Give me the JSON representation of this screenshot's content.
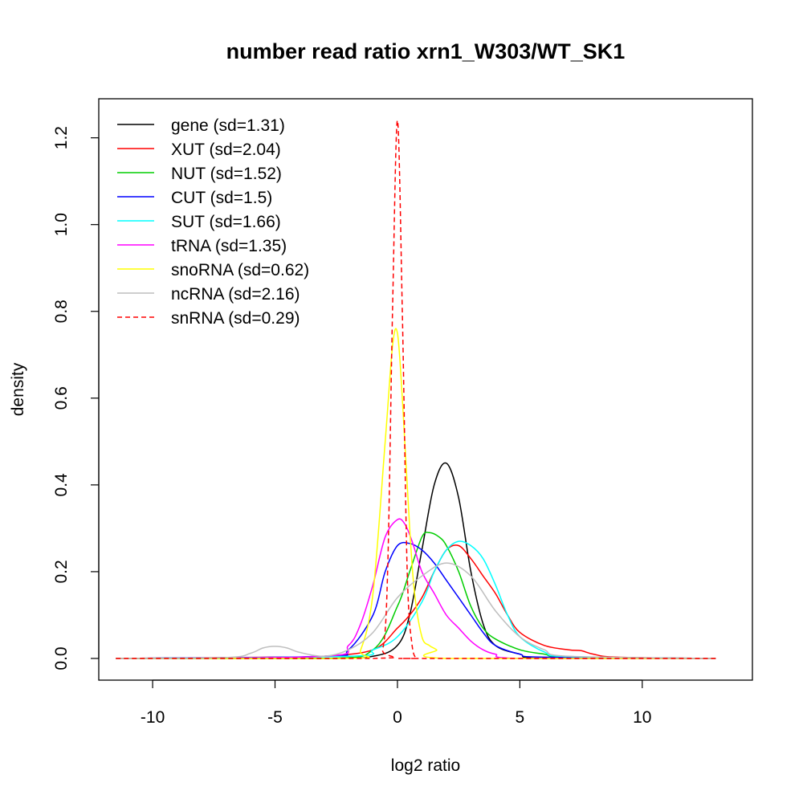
{
  "chart_data": {
    "type": "line",
    "title": "number read ratio xrn1_W303/WT_SK1",
    "xlabel": "log2 ratio",
    "ylabel": "density",
    "xlim": [
      -12.2,
      14.5
    ],
    "ylim": [
      -0.05,
      1.29
    ],
    "xticks": [
      -10,
      -5,
      0,
      5,
      10
    ],
    "xtick_labels": [
      "-10",
      "-5",
      "0",
      "5",
      "10"
    ],
    "yticks": [
      0.0,
      0.2,
      0.4,
      0.6,
      0.8,
      1.0,
      1.2
    ],
    "ytick_labels": [
      "0.0",
      "0.2",
      "0.4",
      "0.6",
      "0.8",
      "1.0",
      "1.2"
    ],
    "grid": false,
    "legend_position": "top-left",
    "series": [
      {
        "name": "gene (sd=1.31)",
        "color": "#000000",
        "dashed": false,
        "x": [
          -11.5,
          -3,
          -1,
          0,
          0.5,
          1,
          1.5,
          2,
          2.5,
          3,
          3.5,
          4,
          5,
          6,
          13
        ],
        "y": [
          0,
          0,
          0.005,
          0.03,
          0.1,
          0.25,
          0.4,
          0.45,
          0.37,
          0.2,
          0.08,
          0.03,
          0.01,
          0,
          0
        ]
      },
      {
        "name": "XUT (sd=2.04)",
        "color": "#ff0000",
        "dashed": false,
        "x": [
          -11.5,
          -5,
          -3,
          -1,
          0,
          0.5,
          1,
          1.5,
          2,
          2.5,
          3,
          3.5,
          4,
          4.5,
          5,
          6,
          7,
          7.5,
          8,
          9,
          13
        ],
        "y": [
          0,
          0.003,
          0.005,
          0.02,
          0.07,
          0.1,
          0.14,
          0.2,
          0.25,
          0.26,
          0.23,
          0.19,
          0.15,
          0.1,
          0.06,
          0.03,
          0.02,
          0.018,
          0.01,
          0.003,
          0
        ]
      },
      {
        "name": "NUT (sd=1.52)",
        "color": "#00cd00",
        "dashed": false,
        "x": [
          -11.5,
          -3,
          -1,
          0,
          0.5,
          1,
          1.3,
          1.7,
          2,
          2.5,
          3,
          3.5,
          4,
          5,
          6,
          7,
          13
        ],
        "y": [
          0,
          0,
          0.02,
          0.12,
          0.2,
          0.28,
          0.29,
          0.28,
          0.26,
          0.2,
          0.12,
          0.07,
          0.045,
          0.02,
          0.01,
          0.003,
          0
        ]
      },
      {
        "name": "CUT (sd=1.5)",
        "color": "#0000ff",
        "dashed": false,
        "x": [
          -11.5,
          -3,
          -2,
          -1,
          -0.5,
          0,
          0.5,
          1,
          1.5,
          2,
          2.5,
          3,
          3.5,
          4,
          5,
          6,
          13
        ],
        "y": [
          0,
          0.005,
          0.02,
          0.1,
          0.2,
          0.26,
          0.265,
          0.25,
          0.22,
          0.18,
          0.14,
          0.1,
          0.06,
          0.03,
          0.01,
          0.003,
          0
        ]
      },
      {
        "name": "SUT (sd=1.66)",
        "color": "#00ffff",
        "dashed": false,
        "x": [
          -11.5,
          -2,
          -1,
          0,
          1,
          1.5,
          2,
          2.5,
          3,
          3.5,
          4,
          4.5,
          5,
          6,
          7,
          13
        ],
        "y": [
          0,
          0.005,
          0.02,
          0.05,
          0.13,
          0.2,
          0.25,
          0.27,
          0.26,
          0.23,
          0.17,
          0.1,
          0.05,
          0.015,
          0.004,
          0
        ]
      },
      {
        "name": "tRNA (sd=1.35)",
        "color": "#ff00ff",
        "dashed": false,
        "x": [
          -11.5,
          -3,
          -2,
          -1.5,
          -1,
          -0.5,
          0,
          0.3,
          0.6,
          1,
          1.5,
          2,
          2.5,
          3,
          3.5,
          4,
          5,
          13
        ],
        "y": [
          0,
          0.005,
          0.03,
          0.08,
          0.17,
          0.28,
          0.32,
          0.31,
          0.27,
          0.2,
          0.15,
          0.1,
          0.07,
          0.04,
          0.02,
          0.01,
          0,
          0
        ]
      },
      {
        "name": "snoRNA (sd=0.62)",
        "color": "#ffff00",
        "dashed": false,
        "x": [
          -11.5,
          -2,
          -1.5,
          -1,
          -0.5,
          -0.2,
          0,
          0.2,
          0.5,
          0.7,
          1,
          1.3,
          1.6,
          2,
          13
        ],
        "y": [
          0,
          0,
          0.02,
          0.15,
          0.5,
          0.72,
          0.75,
          0.6,
          0.3,
          0.15,
          0.05,
          0.03,
          0.02,
          0,
          0
        ]
      },
      {
        "name": "ncRNA (sd=2.16)",
        "color": "#bebebe",
        "dashed": false,
        "x": [
          -11.5,
          -7,
          -6,
          -5.5,
          -5,
          -4.5,
          -4,
          -3,
          -2,
          -1,
          0,
          1,
          2,
          3,
          4,
          5,
          6,
          7,
          13
        ],
        "y": [
          0,
          0.002,
          0.012,
          0.024,
          0.028,
          0.024,
          0.014,
          0.005,
          0.02,
          0.06,
          0.14,
          0.19,
          0.22,
          0.19,
          0.11,
          0.05,
          0.02,
          0.005,
          0
        ]
      },
      {
        "name": "snRNA (sd=0.29)",
        "color": "#ff0000",
        "dashed": true,
        "x": [
          -11.5,
          -1,
          -0.6,
          -0.4,
          -0.2,
          0,
          0.2,
          0.4,
          0.6,
          0.8,
          1,
          13
        ],
        "y": [
          0,
          0,
          0.02,
          0.2,
          0.8,
          1.24,
          0.8,
          0.2,
          0.03,
          0,
          0,
          0
        ]
      }
    ]
  }
}
